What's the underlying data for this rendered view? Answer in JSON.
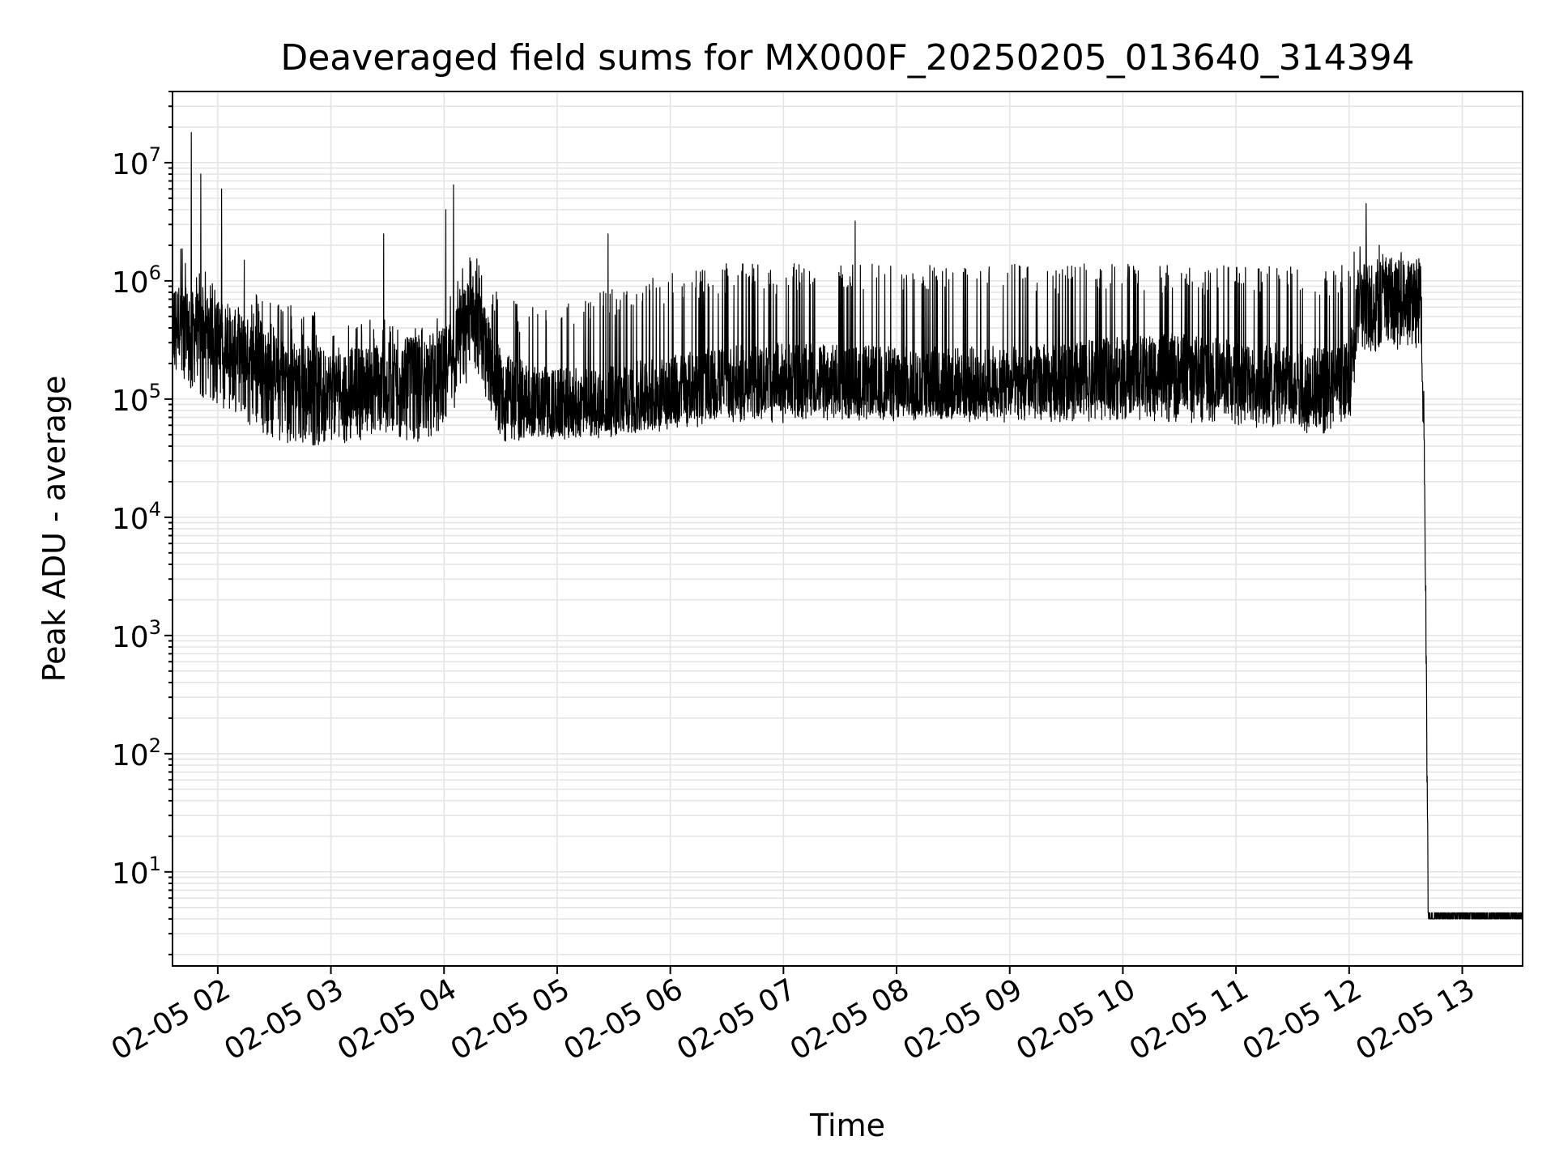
{
  "chart_data": {
    "type": "line",
    "title": "Deaveraged field sums for MX000F_20250205_013640_314394",
    "xlabel": "Time",
    "ylabel": "Peak ADU - average",
    "xscale": "time",
    "yscale": "log",
    "xlim": [
      "02-05 01:36",
      "02-05 13:32"
    ],
    "ylim": [
      1.6,
      40000000
    ],
    "grid": true,
    "x_ticks": [
      "02-05 02",
      "02-05 03",
      "02-05 04",
      "02-05 05",
      "02-05 06",
      "02-05 07",
      "02-05 08",
      "02-05 09",
      "02-05 10",
      "02-05 11",
      "02-05 12",
      "02-05 13"
    ],
    "y_ticks": [
      {
        "value": 10,
        "base": "10",
        "exp": "1"
      },
      {
        "value": 100,
        "base": "10",
        "exp": "2"
      },
      {
        "value": 1000,
        "base": "10",
        "exp": "3"
      },
      {
        "value": 10000,
        "base": "10",
        "exp": "4"
      },
      {
        "value": 100000,
        "base": "10",
        "exp": "5"
      },
      {
        "value": 1000000,
        "base": "10",
        "exp": "6"
      },
      {
        "value": 10000000,
        "base": "10",
        "exp": "7"
      }
    ],
    "line_color": "#000000",
    "series": [
      {
        "x": [
          "02-05 01:36",
          "02-05 01:48",
          "02-05 02:00",
          "02-05 02:15",
          "02-05 02:30",
          "02-05 02:45",
          "02-05 03:00",
          "02-05 03:15",
          "02-05 03:30",
          "02-05 03:45",
          "02-05 04:00",
          "02-05 04:15",
          "02-05 04:30",
          "02-05 04:45",
          "02-05 05:00",
          "02-05 05:30",
          "02-05 06:00",
          "02-05 06:30",
          "02-05 07:00",
          "02-05 07:30",
          "02-05 08:00",
          "02-05 08:30",
          "02-05 09:00",
          "02-05 09:30",
          "02-05 10:00",
          "02-05 10:30",
          "02-05 11:00",
          "02-05 11:30",
          "02-05 11:45",
          "02-05 12:00",
          "02-05 12:05",
          "02-05 12:20",
          "02-05 12:35",
          "02-05 12:38",
          "02-05 12:40",
          "02-05 12:42",
          "02-05 13:00",
          "02-05 13:32"
        ],
        "y": [
          500000,
          400000,
          350000,
          250000,
          180000,
          150000,
          130000,
          140000,
          150000,
          170000,
          200000,
          600000,
          130000,
          100000,
          90000,
          95000,
          120000,
          140000,
          150000,
          145000,
          140000,
          140000,
          140000,
          150000,
          170000,
          180000,
          160000,
          150000,
          140000,
          150000,
          700000,
          800000,
          750000,
          900000,
          30000,
          4,
          4,
          4
        ],
        "low": [
          180000,
          120000,
          100000,
          70000,
          50000,
          45000,
          45000,
          50000,
          55000,
          45000,
          60000,
          180000,
          45000,
          50000,
          50000,
          55000,
          60000,
          70000,
          70000,
          75000,
          70000,
          70000,
          70000,
          70000,
          75000,
          70000,
          65000,
          60000,
          55000,
          65000,
          250000,
          300000,
          280000,
          350000,
          10000,
          4,
          4,
          4
        ],
        "high": [
          3000000,
          1500000,
          900000,
          850000,
          700000,
          600000,
          500000,
          450000,
          500000,
          400000,
          600000,
          2000000,
          800000,
          600000,
          700000,
          900000,
          1200000,
          1400000,
          1400000,
          1400000,
          1400000,
          1400000,
          1400000,
          1400000,
          1400000,
          1350000,
          1350000,
          1350000,
          1300000,
          1400000,
          2500000,
          2000000,
          1600000,
          2000000,
          100000,
          4.5,
          4.5,
          4.5
        ]
      }
    ],
    "spikes": [
      {
        "x": "02-05 01:46",
        "y": 18000000
      },
      {
        "x": "02-05 01:51",
        "y": 8000000
      },
      {
        "x": "02-05 02:02",
        "y": 6000000
      },
      {
        "x": "02-05 02:14",
        "y": 1500000
      },
      {
        "x": "02-05 03:28",
        "y": 2500000
      },
      {
        "x": "02-05 04:01",
        "y": 4000000
      },
      {
        "x": "02-05 04:05",
        "y": 6500000
      },
      {
        "x": "02-05 05:27",
        "y": 2500000
      },
      {
        "x": "02-05 07:38",
        "y": 3200000
      },
      {
        "x": "02-05 12:09",
        "y": 4500000
      },
      {
        "x": "02-05 12:16",
        "y": 2000000
      }
    ]
  }
}
